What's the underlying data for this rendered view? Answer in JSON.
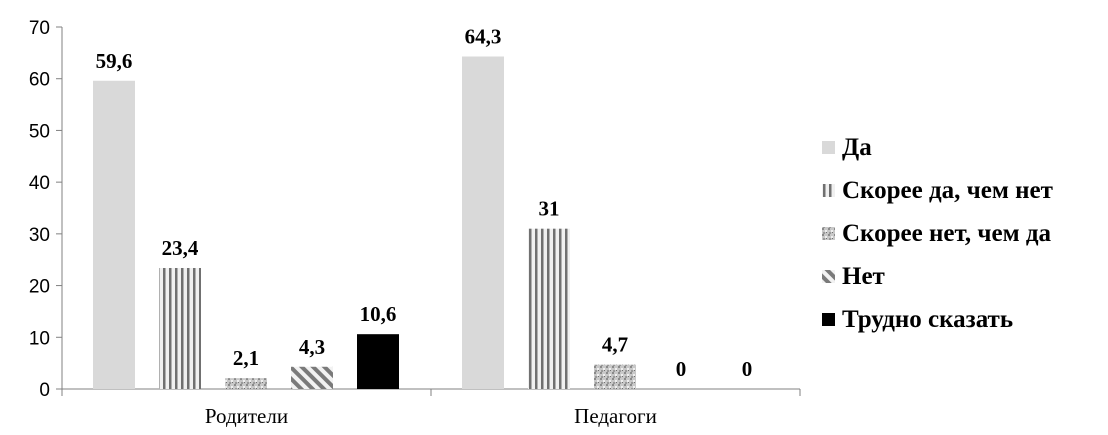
{
  "chart_data": {
    "type": "bar",
    "title": "",
    "xlabel": "",
    "ylabel": "",
    "ylim": [
      0,
      70
    ],
    "yticks": [
      0,
      10,
      20,
      30,
      40,
      50,
      60,
      70
    ],
    "grid": false,
    "legend_position": "right",
    "categories": [
      "Родители",
      "Педагоги"
    ],
    "series": [
      {
        "name": "Да",
        "values": [
          59.6,
          64.3
        ],
        "labels": [
          "59,6",
          "64,3"
        ],
        "pattern": "solid-light"
      },
      {
        "name": "Скорее да, чем нет",
        "values": [
          23.4,
          31
        ],
        "labels": [
          "23,4",
          "31"
        ],
        "pattern": "vertical-stripes"
      },
      {
        "name": "Скорее нет, чем да",
        "values": [
          2.1,
          4.7
        ],
        "labels": [
          "2,1",
          "4,7"
        ],
        "pattern": "speckled"
      },
      {
        "name": "Нет",
        "values": [
          4.3,
          0
        ],
        "labels": [
          "4,3",
          "0"
        ],
        "pattern": "diagonal-stripes"
      },
      {
        "name": "Трудно сказать",
        "values": [
          10.6,
          0
        ],
        "labels": [
          "10,6",
          "0"
        ],
        "pattern": "solid-black"
      }
    ],
    "colors": {
      "light": "#d9d9d9",
      "black": "#000000",
      "axis": "#808080"
    }
  }
}
